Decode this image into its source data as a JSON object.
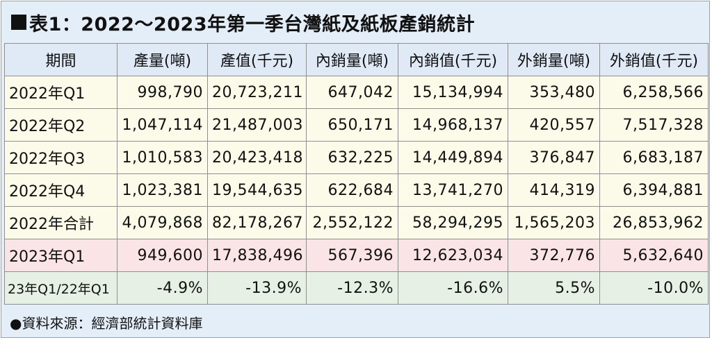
{
  "title": "表1：2022～2023年第一季台灣紙及紙板產銷統計",
  "headers": [
    "期間",
    "產量(噸)",
    "產值(千元)",
    "內銷量(噸)",
    "內銷值(千元)",
    "外銷量(噸)",
    "外銷值(千元)"
  ],
  "rows": [
    [
      "2022年Q1",
      "998,790",
      "20,723,211",
      "647,042",
      "15,134,994",
      "353,480",
      "6,258,566"
    ],
    [
      "2022年Q2",
      "1,047,114",
      "21,487,003",
      "650,171",
      "14,968,137",
      "420,557",
      "7,517,328"
    ],
    [
      "2022年Q3",
      "1,010,583",
      "20,423,418",
      "632,225",
      "14,449,894",
      "376,847",
      "6,683,187"
    ],
    [
      "2022年Q4",
      "1,023,381",
      "19,544,635",
      "622,684",
      "13,741,270",
      "414,319",
      "6,394,881"
    ],
    [
      "2022年合計",
      "4,079,868",
      "82,178,267",
      "2,552,122",
      "58,294,295",
      "1,565,203",
      "26,853,962"
    ],
    [
      "2023年Q1",
      "949,600",
      "17,838,496",
      "567,396",
      "12,623,034",
      "372,776",
      "5,632,640"
    ],
    [
      "23年Q1/22年Q1",
      "-4.9%",
      "-13.9%",
      "-12.3%",
      "-16.6%",
      "5.5%",
      "-10.0%"
    ]
  ],
  "source": "●資料來源：經濟部統計資料庫",
  "colors": {
    "frame_bg": "#e4eef8",
    "row_normal": "#fcfbea",
    "row_2023": "#fbe4e6",
    "row_change": "#e6f0e4"
  }
}
